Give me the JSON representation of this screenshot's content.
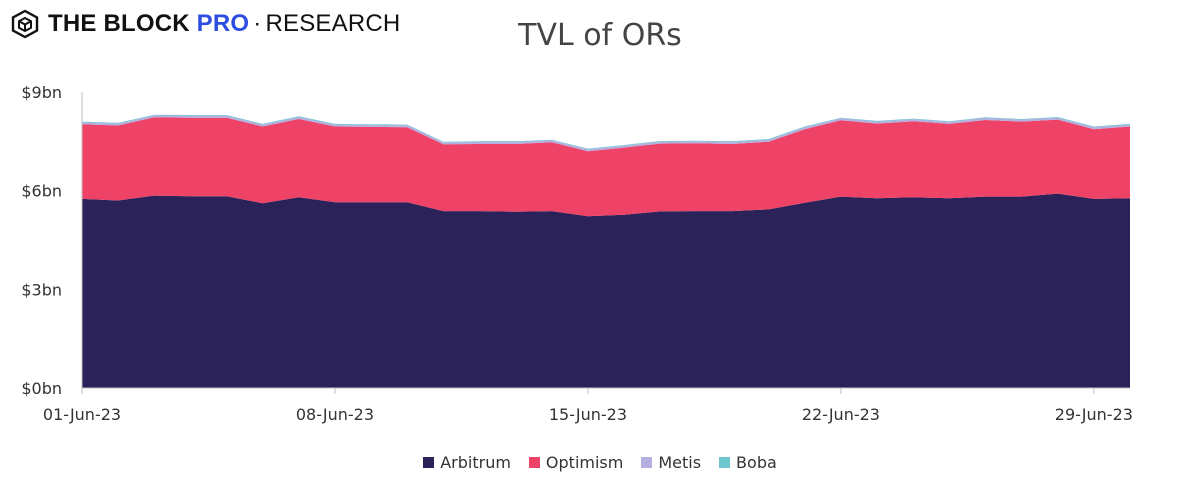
{
  "brand": {
    "bold": "THE BLOCK",
    "pro": "PRO",
    "separator": "·",
    "research": "RESEARCH"
  },
  "chart_data": {
    "type": "area",
    "stacked": true,
    "title": "TVL of ORs",
    "xlabel": "",
    "ylabel": "",
    "ylim": [
      0,
      9
    ],
    "y_ticks": [
      0,
      3,
      6,
      9
    ],
    "y_tick_labels": [
      "$0bn",
      "$3bn",
      "$6bn",
      "$9bn"
    ],
    "x_tick_labels": [
      "01-Jun-23",
      "08-Jun-23",
      "15-Jun-23",
      "22-Jun-23",
      "29-Jun-23"
    ],
    "x_tick_indices": [
      0,
      7,
      14,
      21,
      28
    ],
    "x": [
      "01-Jun-23",
      "02-Jun-23",
      "03-Jun-23",
      "04-Jun-23",
      "05-Jun-23",
      "06-Jun-23",
      "07-Jun-23",
      "08-Jun-23",
      "09-Jun-23",
      "10-Jun-23",
      "11-Jun-23",
      "12-Jun-23",
      "13-Jun-23",
      "14-Jun-23",
      "15-Jun-23",
      "16-Jun-23",
      "17-Jun-23",
      "18-Jun-23",
      "19-Jun-23",
      "20-Jun-23",
      "21-Jun-23",
      "22-Jun-23",
      "23-Jun-23",
      "24-Jun-23",
      "25-Jun-23",
      "26-Jun-23",
      "27-Jun-23",
      "28-Jun-23",
      "29-Jun-23",
      "30-Jun-23"
    ],
    "series": [
      {
        "name": "Arbitrum",
        "color": "#2a2259",
        "values": [
          5.75,
          5.7,
          5.85,
          5.83,
          5.83,
          5.62,
          5.8,
          5.65,
          5.65,
          5.65,
          5.38,
          5.38,
          5.36,
          5.38,
          5.22,
          5.27,
          5.37,
          5.38,
          5.38,
          5.43,
          5.63,
          5.82,
          5.77,
          5.8,
          5.77,
          5.82,
          5.82,
          5.91,
          5.75,
          5.77
        ]
      },
      {
        "name": "Optimism",
        "color": "#ee4267",
        "values": [
          2.27,
          2.28,
          2.38,
          2.39,
          2.39,
          2.33,
          2.38,
          2.3,
          2.29,
          2.28,
          2.03,
          2.04,
          2.06,
          2.09,
          1.98,
          2.04,
          2.06,
          2.06,
          2.04,
          2.06,
          2.24,
          2.32,
          2.27,
          2.31,
          2.26,
          2.33,
          2.28,
          2.25,
          2.12,
          2.18
        ]
      },
      {
        "name": "Metis",
        "color": "#b3afe0",
        "values": [
          0.06,
          0.06,
          0.06,
          0.06,
          0.06,
          0.06,
          0.06,
          0.06,
          0.06,
          0.06,
          0.06,
          0.06,
          0.06,
          0.06,
          0.06,
          0.06,
          0.06,
          0.06,
          0.06,
          0.06,
          0.06,
          0.06,
          0.06,
          0.06,
          0.06,
          0.06,
          0.06,
          0.06,
          0.06,
          0.06
        ]
      },
      {
        "name": "Boba",
        "color": "#6ec6cf",
        "values": [
          0.02,
          0.02,
          0.02,
          0.02,
          0.02,
          0.02,
          0.02,
          0.02,
          0.02,
          0.02,
          0.02,
          0.02,
          0.02,
          0.02,
          0.02,
          0.02,
          0.02,
          0.02,
          0.02,
          0.02,
          0.02,
          0.02,
          0.02,
          0.02,
          0.02,
          0.02,
          0.02,
          0.02,
          0.02,
          0.02
        ]
      }
    ],
    "grid": false,
    "legend_position": "bottom"
  }
}
